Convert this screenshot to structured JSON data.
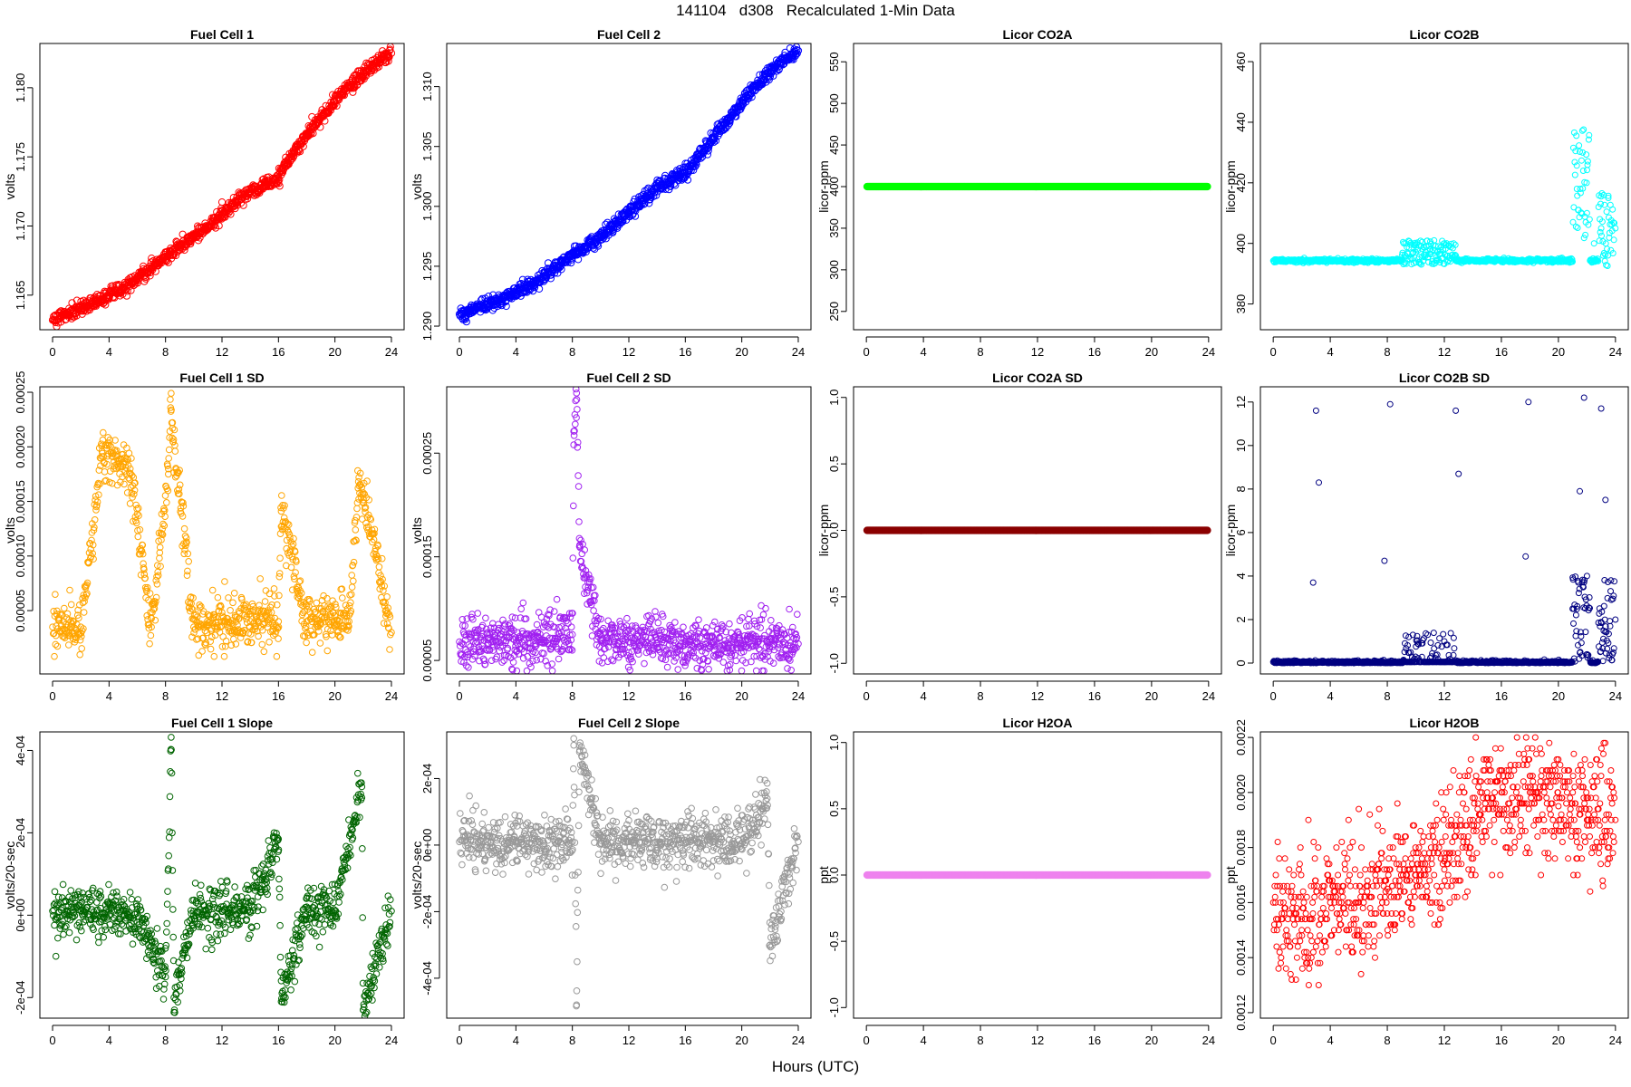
{
  "figure": {
    "title": "141104   d308   Recalculated 1-Min Data",
    "xlabel": "Hours (UTC)"
  },
  "chart_data": [
    {
      "type": "scatter",
      "title": "Fuel Cell 1",
      "xlabel": "",
      "ylabel": "volts",
      "xlim": [
        -0.9,
        24.9
      ],
      "ylim": [
        1.1625,
        1.1832
      ],
      "xticks": [
        "0",
        "4",
        "8",
        "12",
        "16",
        "20",
        "24"
      ],
      "yticks": [
        "1.165",
        "1.170",
        "1.175",
        "1.180"
      ],
      "color": "#ff0000",
      "series": [
        {
          "x": [
            0,
            1,
            2,
            3,
            4,
            5,
            6,
            7,
            8,
            9,
            10,
            11,
            12,
            13,
            14,
            15,
            16,
            17,
            18,
            19,
            20,
            21,
            22,
            23,
            24
          ],
          "y": [
            1.1632,
            1.1636,
            1.164,
            1.1645,
            1.165,
            1.1655,
            1.1662,
            1.167,
            1.1678,
            1.1685,
            1.1692,
            1.17,
            1.1708,
            1.1717,
            1.1725,
            1.173,
            1.1735,
            1.1752,
            1.1766,
            1.1778,
            1.179,
            1.1802,
            1.181,
            1.1818,
            1.1825
          ]
        }
      ]
    },
    {
      "type": "scatter",
      "title": "Fuel Cell 2",
      "xlabel": "",
      "ylabel": "volts",
      "xlim": [
        -0.9,
        24.9
      ],
      "ylim": [
        1.2897,
        1.3136
      ],
      "xticks": [
        "0",
        "4",
        "8",
        "12",
        "16",
        "20",
        "24"
      ],
      "yticks": [
        "1.290",
        "1.295",
        "1.300",
        "1.305",
        "1.310"
      ],
      "color": "#0000ff",
      "series": [
        {
          "x": [
            0,
            1,
            2,
            3,
            4,
            5,
            6,
            7,
            8,
            9,
            10,
            11,
            12,
            13,
            14,
            15,
            16,
            17,
            18,
            19,
            20,
            21,
            22,
            23,
            24
          ],
          "y": [
            1.291,
            1.2914,
            1.2918,
            1.2922,
            1.2928,
            1.2934,
            1.2942,
            1.295,
            1.296,
            1.2967,
            1.2975,
            1.2985,
            1.2995,
            1.3005,
            1.3015,
            1.3022,
            1.3028,
            1.3042,
            1.3058,
            1.3072,
            1.3087,
            1.31,
            1.3112,
            1.3122,
            1.313
          ]
        }
      ]
    },
    {
      "type": "scatter",
      "title": "Licor CO2A",
      "xlabel": "",
      "ylabel": "licor-ppm",
      "xlim": [
        -0.9,
        24.9
      ],
      "ylim": [
        228,
        572
      ],
      "xticks": [
        "0",
        "4",
        "8",
        "12",
        "16",
        "20",
        "24"
      ],
      "yticks": [
        "250",
        "300",
        "350",
        "400",
        "450",
        "500",
        "550"
      ],
      "color": "#00ff00",
      "series": [
        {
          "x": [
            0,
            24
          ],
          "y": [
            400,
            400
          ]
        }
      ]
    },
    {
      "type": "scatter",
      "title": "Licor CO2B",
      "xlabel": "",
      "ylabel": "licor-ppm",
      "xlim": [
        -0.9,
        24.9
      ],
      "ylim": [
        371.5,
        466
      ],
      "xticks": [
        "0",
        "4",
        "8",
        "12",
        "16",
        "20",
        "24"
      ],
      "yticks": [
        "380",
        "400",
        "420",
        "440",
        "460"
      ],
      "color": "#00ffff",
      "series": [
        {
          "x": [
            0,
            4,
            7.8,
            8.5,
            9.2,
            10,
            11,
            12,
            12.8,
            13.5,
            15,
            17,
            18.5,
            20,
            20.9,
            21.3,
            21.7,
            22,
            22.5,
            23,
            23.5,
            24
          ],
          "y": [
            394.3,
            394.3,
            394.3,
            394.5,
            395.5,
            397,
            398,
            400,
            396,
            395,
            395,
            394.5,
            395,
            395,
            395,
            418,
            430,
            410,
            400,
            405,
            415,
            405
          ]
        }
      ]
    },
    {
      "type": "scatter",
      "title": "Fuel Cell 1 SD",
      "xlabel": "",
      "ylabel": "volts",
      "xlim": [
        -0.9,
        24.9
      ],
      "ylim": [
        -8e-06,
        0.000255
      ],
      "xticks": [
        "0",
        "4",
        "8",
        "12",
        "16",
        "20",
        "24"
      ],
      "yticks": [
        "0.00005",
        "0.00010",
        "0.00015",
        "0.00020",
        "0.00025"
      ],
      "color": "#ffa500",
      "series": [
        {
          "x": [
            0,
            2,
            3.5,
            5.5,
            7,
            8.2,
            8.4,
            8.5,
            10,
            12,
            13,
            14,
            16,
            16.2,
            18,
            20,
            21,
            21.7,
            22,
            24
          ],
          "y": [
            3.5e-05,
            3.5e-05,
            0.000191,
            0.00018,
            3.5e-05,
            0.000175,
            0.000249,
            0.000217,
            3.5e-05,
            4e-05,
            4e-05,
            4e-05,
            4e-05,
            0.000141,
            4e-05,
            4.5e-05,
            4e-05,
            0.000172,
            0.000158,
            3e-05
          ]
        }
      ]
    },
    {
      "type": "scatter",
      "title": "Fuel Cell 2 SD",
      "xlabel": "",
      "ylabel": "volts",
      "xlim": [
        -0.9,
        24.9
      ],
      "ylim": [
        3.7e-05,
        0.000314
      ],
      "xticks": [
        "0",
        "4",
        "8",
        "12",
        "16",
        "20",
        "24"
      ],
      "yticks": [
        "0.00005",
        "0.00015",
        "0.00025"
      ],
      "color": "#a020f0",
      "series": [
        {
          "x": [
            0,
            2,
            4,
            6,
            8,
            8.1,
            8.3,
            8.5,
            10,
            12,
            14,
            16,
            18,
            20,
            22,
            24
          ],
          "y": [
            6.8e-05,
            7e-05,
            7.2e-05,
            6.8e-05,
            7.5e-05,
            0.000258,
            0.000308,
            0.00016,
            7e-05,
            6.8e-05,
            7e-05,
            6.6e-05,
            6.5e-05,
            6.6e-05,
            6.8e-05,
            6.6e-05
          ]
        }
      ]
    },
    {
      "type": "scatter",
      "title": "Licor CO2A SD",
      "xlabel": "",
      "ylabel": "licor-ppm",
      "xlim": [
        -0.9,
        24.9
      ],
      "ylim": [
        -1.08,
        1.08
      ],
      "xticks": [
        "0",
        "4",
        "8",
        "12",
        "16",
        "20",
        "24"
      ],
      "yticks": [
        "-1.0",
        "-0.5",
        "0.0",
        "0.5",
        "1.0"
      ],
      "color": "#8b0000",
      "series": [
        {
          "x": [
            0,
            24
          ],
          "y": [
            0,
            0
          ]
        }
      ]
    },
    {
      "type": "scatter",
      "title": "Licor CO2B SD",
      "xlabel": "",
      "ylabel": "licor-ppm",
      "xlim": [
        -0.9,
        24.9
      ],
      "ylim": [
        -0.5,
        12.7
      ],
      "xticks": [
        "0",
        "4",
        "8",
        "12",
        "16",
        "20",
        "24"
      ],
      "yticks": [
        "0",
        "2",
        "4",
        "6",
        "8",
        "10",
        "12"
      ],
      "color": "#000080",
      "series": [
        {
          "x": [
            0,
            2.8,
            3,
            3.2,
            7.8,
            8.2,
            9.5,
            12,
            12.8,
            13,
            17.7,
            17.9,
            21,
            21.5,
            21.8,
            22,
            23,
            23.3,
            24
          ],
          "y": [
            0.05,
            3.7,
            11.6,
            8.3,
            4.7,
            11.9,
            1.2,
            1.0,
            11.6,
            8.7,
            4.9,
            12.0,
            2.5,
            7.9,
            12.2,
            4.0,
            11.7,
            7.5,
            2.0
          ]
        }
      ]
    },
    {
      "type": "scatter",
      "title": "Fuel Cell 1 Slope",
      "xlabel": "",
      "ylabel": "volts/20-sec",
      "xlim": [
        -0.9,
        24.9
      ],
      "ylim": [
        -0.00025,
        0.000445
      ],
      "xticks": [
        "0",
        "4",
        "8",
        "12",
        "16",
        "20",
        "24"
      ],
      "yticks": [
        "-2e-04",
        "0e+00",
        "2e-04",
        "4e-04"
      ],
      "color": "#006400",
      "series": [
        {
          "x": [
            0,
            2,
            4,
            6,
            8,
            8.4,
            8.6,
            10,
            12,
            14,
            16,
            16.2,
            18,
            20,
            21.9,
            22,
            24
          ],
          "y": [
            1e-05,
            1e-05,
            1e-05,
            5e-06,
            -0.00015,
            0.000432,
            -0.0002,
            1e-05,
            1e-05,
            1e-05,
            0.000185,
            -0.00021,
            2e-05,
            1e-05,
            0.000312,
            -0.00023,
            1e-05
          ]
        }
      ]
    },
    {
      "type": "scatter",
      "title": "Fuel Cell 2 Slope",
      "xlabel": "",
      "ylabel": "volts/20-sec",
      "xlim": [
        -0.9,
        24.9
      ],
      "ylim": [
        -0.00052,
        0.00034
      ],
      "xticks": [
        "0",
        "4",
        "8",
        "12",
        "16",
        "20",
        "24"
      ],
      "yticks": [
        "-4e-04",
        "-2e-04",
        "0e+00",
        "2e-04"
      ],
      "color": "#999999",
      "series": [
        {
          "x": [
            0,
            2,
            4,
            6,
            8,
            8.1,
            8.3,
            8.5,
            10,
            12,
            14,
            16,
            18,
            20,
            21.8,
            22,
            24
          ],
          "y": [
            1e-05,
            1e-05,
            1e-05,
            5e-06,
            1e-05,
            0.00032,
            -0.00048,
            0.00028,
            5e-06,
            1e-05,
            1e-05,
            5e-06,
            1e-05,
            5e-06,
            0.00014,
            -0.0003,
            1e-05
          ]
        }
      ]
    },
    {
      "type": "scatter",
      "title": "Licor H2OA",
      "xlabel": "",
      "ylabel": "ppt",
      "xlim": [
        -0.9,
        24.9
      ],
      "ylim": [
        -1.08,
        1.08
      ],
      "xticks": [
        "0",
        "4",
        "8",
        "12",
        "16",
        "20",
        "24"
      ],
      "yticks": [
        "-1.0",
        "-0.5",
        "0.0",
        "0.5",
        "1.0"
      ],
      "color": "#ee82ee",
      "series": [
        {
          "x": [
            0,
            24
          ],
          "y": [
            0,
            0
          ]
        }
      ]
    },
    {
      "type": "scatter",
      "title": "Licor H2OB",
      "xlabel": "",
      "ylabel": "ppt",
      "xlim": [
        -0.9,
        24.9
      ],
      "ylim": [
        0.00118,
        0.00222
      ],
      "xticks": [
        "0",
        "4",
        "8",
        "12",
        "16",
        "20",
        "24"
      ],
      "yticks": [
        "0.0012",
        "0.0014",
        "0.0016",
        "0.0018",
        "0.0020",
        "0.0022"
      ],
      "color": "#ff0000",
      "series": [
        {
          "x": [
            0,
            2,
            4,
            6,
            8,
            10,
            12,
            14,
            15,
            16,
            18,
            20,
            22,
            24
          ],
          "y": [
            0.0016,
            0.0015,
            0.0016,
            0.0016,
            0.00165,
            0.0017,
            0.00175,
            0.0019,
            0.002,
            0.002,
            0.002,
            0.00195,
            0.0019,
            0.0019
          ]
        }
      ]
    }
  ]
}
